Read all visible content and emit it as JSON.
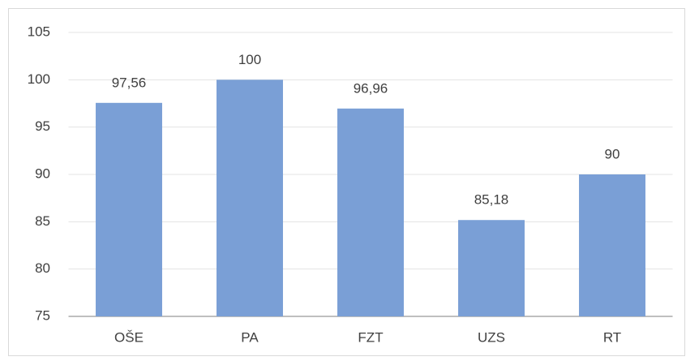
{
  "chart_data": {
    "type": "bar",
    "categories": [
      "OŠE",
      "PA",
      "FZT",
      "UZS",
      "RT"
    ],
    "values": [
      97.56,
      100,
      96.96,
      85.18,
      90
    ],
    "value_labels": [
      "97,56",
      "100",
      "96,96",
      "85,18",
      "90"
    ],
    "color": "#7a9fd6",
    "ylim": [
      75,
      105
    ],
    "yticks": [
      75,
      80,
      85,
      90,
      95,
      100,
      105
    ],
    "grid": true
  }
}
